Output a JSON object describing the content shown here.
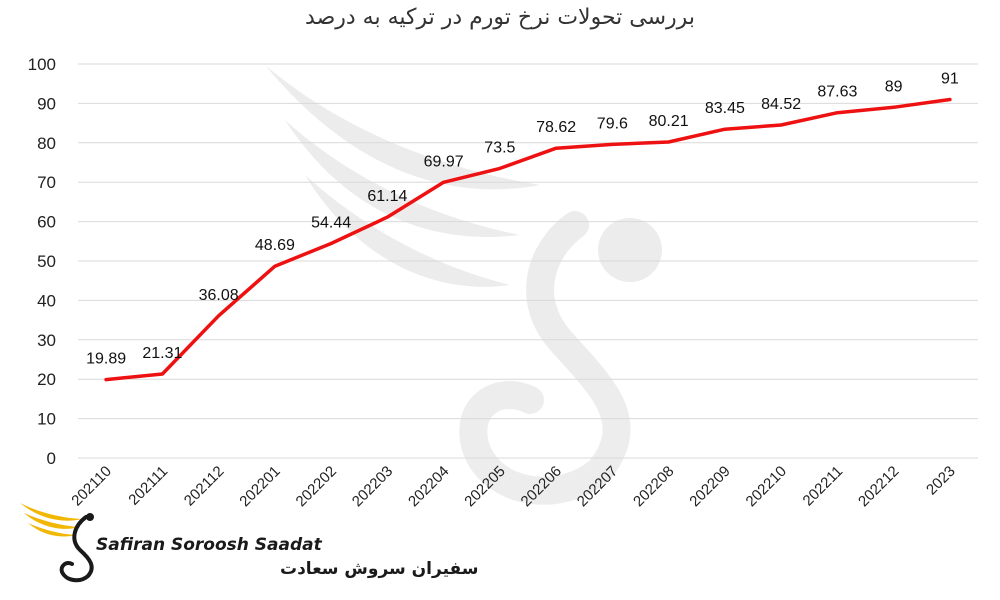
{
  "chart_data": {
    "type": "line",
    "title": "بررسی تحولات نرخ تورم در ترکیه به درصد",
    "categories": [
      "202110",
      "202111",
      "202112",
      "202201",
      "202202",
      "202203",
      "202204",
      "202205",
      "202206",
      "202207",
      "202208",
      "202209",
      "202210",
      "202211",
      "202212",
      "2023"
    ],
    "series": [
      {
        "values": [
          19.89,
          21.31,
          36.08,
          48.69,
          54.44,
          61.14,
          69.97,
          73.5,
          78.62,
          79.6,
          80.21,
          83.45,
          84.52,
          87.63,
          89,
          91
        ],
        "color": "#ee1111"
      }
    ],
    "ylim": [
      0,
      100
    ],
    "yticks": [
      0,
      10,
      20,
      30,
      40,
      50,
      60,
      70,
      80,
      90,
      100
    ],
    "grid": true,
    "legend": "none"
  },
  "watermark": {
    "brand_en": "Safiran Soroosh Saadat",
    "brand_fa": "سفیران سروش سعادت",
    "logo_icon": "swan-wing-logo-icon",
    "accent_color": "#f2b705"
  }
}
